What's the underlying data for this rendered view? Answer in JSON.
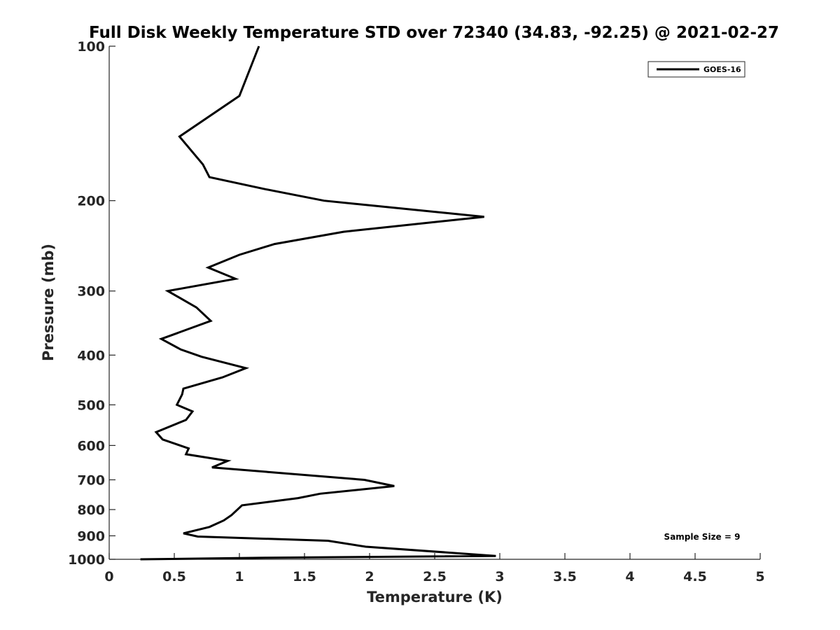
{
  "chart_data": {
    "type": "line",
    "title": "Full Disk Weekly Temperature STD over 72340 (34.83, -92.25) @ 2021-02-27",
    "xlabel": "Temperature (K)",
    "ylabel": "Pressure (mb)",
    "xlim": [
      0,
      5
    ],
    "ylim": [
      100,
      1000
    ],
    "y_scale": "log",
    "y_reversed": true,
    "x_ticks": [
      "0",
      "0.5",
      "1",
      "1.5",
      "2",
      "2.5",
      "3",
      "3.5",
      "4",
      "4.5",
      "5"
    ],
    "y_ticks": [
      "100",
      "200",
      "300",
      "400",
      "500",
      "600",
      "700",
      "800",
      "900",
      "1000"
    ],
    "grid": false,
    "legend_position": "top-right",
    "series": [
      {
        "name": "GOES-16",
        "color": "#000000",
        "points": [
          [
            1.15,
            100
          ],
          [
            1.0,
            125
          ],
          [
            0.54,
            150
          ],
          [
            0.72,
            170
          ],
          [
            0.77,
            180
          ],
          [
            1.2,
            190
          ],
          [
            1.65,
            200
          ],
          [
            2.88,
            215
          ],
          [
            1.8,
            230
          ],
          [
            1.27,
            243
          ],
          [
            1.0,
            255
          ],
          [
            0.76,
            270
          ],
          [
            0.97,
            284
          ],
          [
            0.45,
            300
          ],
          [
            0.67,
            323
          ],
          [
            0.78,
            343
          ],
          [
            0.4,
            372
          ],
          [
            0.55,
            390
          ],
          [
            0.71,
            403
          ],
          [
            1.05,
            424
          ],
          [
            0.87,
            442
          ],
          [
            0.57,
            465
          ],
          [
            0.56,
            477
          ],
          [
            0.52,
            500
          ],
          [
            0.64,
            515
          ],
          [
            0.59,
            535
          ],
          [
            0.36,
            565
          ],
          [
            0.41,
            584
          ],
          [
            0.61,
            608
          ],
          [
            0.59,
            624
          ],
          [
            0.91,
            643
          ],
          [
            0.79,
            662
          ],
          [
            1.96,
            700
          ],
          [
            2.19,
            720
          ],
          [
            1.62,
            745
          ],
          [
            1.45,
            760
          ],
          [
            1.02,
            785
          ],
          [
            0.94,
            820
          ],
          [
            0.88,
            840
          ],
          [
            0.77,
            865
          ],
          [
            0.57,
            890
          ],
          [
            0.68,
            903
          ],
          [
            1.68,
            920
          ],
          [
            1.97,
            945
          ],
          [
            2.97,
            985
          ],
          [
            1.2,
            993
          ],
          [
            0.24,
            1000
          ]
        ]
      }
    ],
    "annotations": [
      "Sample Size = 9"
    ]
  }
}
